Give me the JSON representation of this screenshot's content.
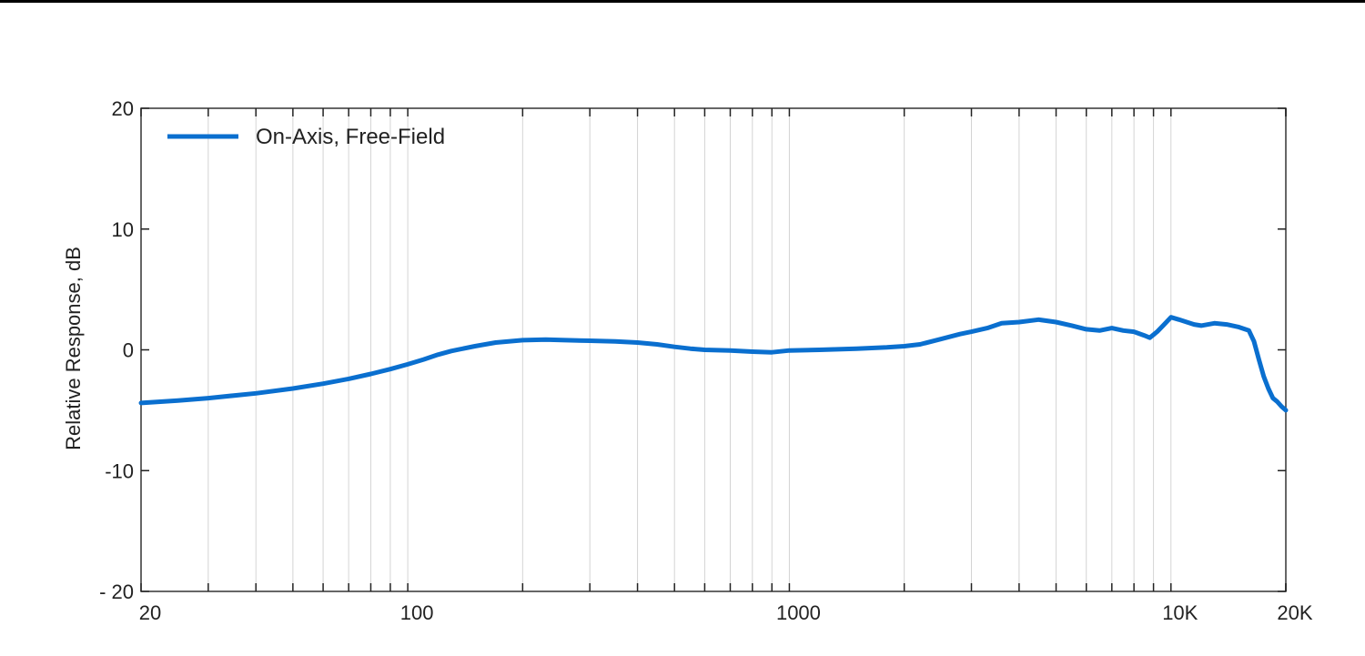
{
  "chart_data": {
    "type": "line",
    "title": "",
    "xlabel": "",
    "ylabel": "Relative Response, dB",
    "xscale": "log",
    "xlim": [
      20,
      20000
    ],
    "ylim": [
      -20,
      20
    ],
    "grid": "vertical",
    "legend_position": "top-left",
    "x_ticks": [
      {
        "value": 20,
        "label": "20"
      },
      {
        "value": 100,
        "label": "100"
      },
      {
        "value": 1000,
        "label": "1000"
      },
      {
        "value": 10000,
        "label": "10K"
      },
      {
        "value": 20000,
        "label": "20K"
      }
    ],
    "y_ticks": [
      {
        "value": 20,
        "label": "20"
      },
      {
        "value": 10,
        "label": "10"
      },
      {
        "value": 0,
        "label": "0"
      },
      {
        "value": -10,
        "label": "-10"
      },
      {
        "value": -20,
        "label": "- 20"
      }
    ],
    "series": [
      {
        "name": "On-Axis, Free-Field",
        "color": "#0a6fcf",
        "points": [
          [
            20,
            -4.4
          ],
          [
            25,
            -4.2
          ],
          [
            30,
            -4.0
          ],
          [
            40,
            -3.6
          ],
          [
            50,
            -3.2
          ],
          [
            60,
            -2.8
          ],
          [
            70,
            -2.4
          ],
          [
            80,
            -2.0
          ],
          [
            90,
            -1.6
          ],
          [
            100,
            -1.2
          ],
          [
            110,
            -0.8
          ],
          [
            120,
            -0.4
          ],
          [
            130,
            -0.1
          ],
          [
            150,
            0.3
          ],
          [
            170,
            0.6
          ],
          [
            200,
            0.8
          ],
          [
            230,
            0.85
          ],
          [
            260,
            0.8
          ],
          [
            300,
            0.75
          ],
          [
            350,
            0.7
          ],
          [
            400,
            0.6
          ],
          [
            450,
            0.45
          ],
          [
            500,
            0.25
          ],
          [
            550,
            0.1
          ],
          [
            600,
            0.0
          ],
          [
            700,
            -0.05
          ],
          [
            800,
            -0.15
          ],
          [
            900,
            -0.2
          ],
          [
            1000,
            -0.05
          ],
          [
            1200,
            0.0
          ],
          [
            1500,
            0.1
          ],
          [
            1800,
            0.2
          ],
          [
            2000,
            0.3
          ],
          [
            2200,
            0.45
          ],
          [
            2500,
            0.9
          ],
          [
            2800,
            1.3
          ],
          [
            3000,
            1.5
          ],
          [
            3300,
            1.8
          ],
          [
            3600,
            2.2
          ],
          [
            4000,
            2.3
          ],
          [
            4500,
            2.5
          ],
          [
            5000,
            2.3
          ],
          [
            5500,
            2.0
          ],
          [
            6000,
            1.7
          ],
          [
            6500,
            1.6
          ],
          [
            7000,
            1.8
          ],
          [
            7500,
            1.6
          ],
          [
            8000,
            1.5
          ],
          [
            8500,
            1.2
          ],
          [
            8800,
            1.0
          ],
          [
            9200,
            1.5
          ],
          [
            9600,
            2.1
          ],
          [
            10000,
            2.7
          ],
          [
            10500,
            2.5
          ],
          [
            11000,
            2.3
          ],
          [
            11500,
            2.1
          ],
          [
            12000,
            2.0
          ],
          [
            13000,
            2.2
          ],
          [
            14000,
            2.1
          ],
          [
            15000,
            1.9
          ],
          [
            16000,
            1.6
          ],
          [
            16500,
            0.7
          ],
          [
            17000,
            -0.8
          ],
          [
            17500,
            -2.2
          ],
          [
            18000,
            -3.2
          ],
          [
            18500,
            -4.0
          ],
          [
            19000,
            -4.3
          ],
          [
            19500,
            -4.7
          ],
          [
            20000,
            -5.0
          ]
        ]
      }
    ]
  }
}
